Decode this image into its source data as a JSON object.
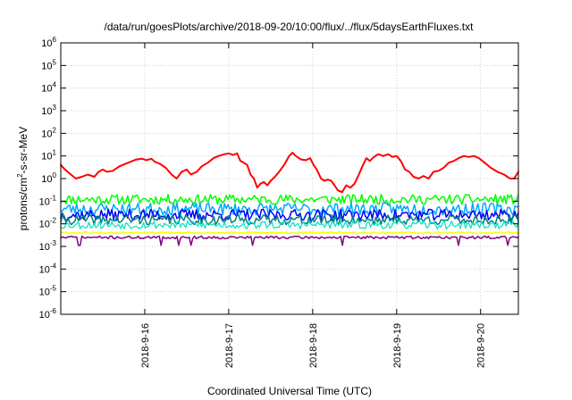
{
  "chart_data": {
    "type": "line",
    "title": "/data/run/goesPlots/archive/2018-09-20/10:00/flux/../flux/5daysEarthFluxes.txt",
    "xlabel": "Coordinated Universal Time (UTC)",
    "ylabel": "protons/cm2-s-sr-MeV",
    "ylabel_parts": {
      "pre": "protons/cm",
      "sup": "2",
      "post": "-s-sr-MeV"
    },
    "yscale": "log",
    "ylim": [
      1e-06,
      1000000.0
    ],
    "xlim": [
      0,
      5.45
    ],
    "grid": true,
    "x_tick_labels": [
      {
        "x": 1,
        "label": "2018-9-16"
      },
      {
        "x": 2,
        "label": "2018-9-17"
      },
      {
        "x": 3,
        "label": "2018-9-18"
      },
      {
        "x": 4,
        "label": "2018-9-19"
      },
      {
        "x": 5,
        "label": "2018-9-20"
      }
    ],
    "y_tick_labels": [
      {
        "exp": -6,
        "base": "10",
        "sup": "-6"
      },
      {
        "exp": -5,
        "base": "10",
        "sup": "-5"
      },
      {
        "exp": -4,
        "base": "10",
        "sup": "-4"
      },
      {
        "exp": -3,
        "base": "10",
        "sup": "-3"
      },
      {
        "exp": -2,
        "base": "10",
        "sup": "-2"
      },
      {
        "exp": -1,
        "base": "10",
        "sup": "-1"
      },
      {
        "exp": 0,
        "base": "10",
        "sup": "0"
      },
      {
        "exp": 1,
        "base": "10",
        "sup": "1"
      },
      {
        "exp": 2,
        "base": "10",
        "sup": "2"
      },
      {
        "exp": 3,
        "base": "10",
        "sup": "3"
      },
      {
        "exp": 4,
        "base": "10",
        "sup": "4"
      },
      {
        "exp": 5,
        "base": "10",
        "sup": "5"
      },
      {
        "exp": 6,
        "base": "10",
        "sup": "6"
      }
    ],
    "x_note": "x values are days relative to the 2018-9-16 00:00 UTC tick minus one (x=1 is 2018-9-16)",
    "series": [
      {
        "color": "#ff0000",
        "width": 2,
        "points": [
          [
            0.0,
            4.0
          ],
          [
            0.05,
            2.5
          ],
          [
            0.12,
            1.5
          ],
          [
            0.18,
            1.0
          ],
          [
            0.25,
            1.2
          ],
          [
            0.32,
            1.5
          ],
          [
            0.4,
            1.2
          ],
          [
            0.45,
            2.0
          ],
          [
            0.5,
            2.5
          ],
          [
            0.55,
            2.0
          ],
          [
            0.62,
            2.2
          ],
          [
            0.7,
            3.5
          ],
          [
            0.8,
            5.0
          ],
          [
            0.9,
            7.0
          ],
          [
            0.97,
            7.5
          ],
          [
            1.02,
            6.5
          ],
          [
            1.08,
            7.5
          ],
          [
            1.12,
            5.5
          ],
          [
            1.18,
            4.5
          ],
          [
            1.25,
            3.0
          ],
          [
            1.32,
            1.5
          ],
          [
            1.38,
            1.0
          ],
          [
            1.44,
            2.0
          ],
          [
            1.5,
            2.5
          ],
          [
            1.55,
            1.5
          ],
          [
            1.62,
            2.0
          ],
          [
            1.68,
            3.5
          ],
          [
            1.75,
            5.0
          ],
          [
            1.82,
            8.0
          ],
          [
            1.88,
            10.0
          ],
          [
            1.95,
            12.0
          ],
          [
            2.0,
            13.0
          ],
          [
            2.05,
            11.0
          ],
          [
            2.1,
            13.0
          ],
          [
            2.14,
            6.0
          ],
          [
            2.18,
            5.0
          ],
          [
            2.22,
            4.0
          ],
          [
            2.26,
            1.5
          ],
          [
            2.3,
            1.0
          ],
          [
            2.34,
            0.4
          ],
          [
            2.38,
            0.6
          ],
          [
            2.42,
            0.7
          ],
          [
            2.46,
            0.5
          ],
          [
            2.5,
            0.8
          ],
          [
            2.55,
            1.2
          ],
          [
            2.6,
            2.0
          ],
          [
            2.66,
            4.0
          ],
          [
            2.72,
            10.0
          ],
          [
            2.76,
            14.0
          ],
          [
            2.8,
            10.0
          ],
          [
            2.86,
            7.0
          ],
          [
            2.92,
            6.5
          ],
          [
            2.97,
            8.0
          ],
          [
            3.01,
            4.0
          ],
          [
            3.05,
            2.5
          ],
          [
            3.1,
            1.0
          ],
          [
            3.14,
            0.8
          ],
          [
            3.18,
            0.9
          ],
          [
            3.22,
            0.8
          ],
          [
            3.26,
            0.5
          ],
          [
            3.3,
            0.3
          ],
          [
            3.35,
            0.25
          ],
          [
            3.4,
            0.5
          ],
          [
            3.45,
            0.4
          ],
          [
            3.5,
            0.6
          ],
          [
            3.55,
            1.5
          ],
          [
            3.6,
            4.0
          ],
          [
            3.64,
            8.0
          ],
          [
            3.68,
            6.0
          ],
          [
            3.73,
            9.0
          ],
          [
            3.78,
            12.0
          ],
          [
            3.84,
            10.0
          ],
          [
            3.9,
            12.0
          ],
          [
            3.95,
            9.0
          ],
          [
            4.0,
            10.0
          ],
          [
            4.05,
            6.0
          ],
          [
            4.1,
            2.5
          ],
          [
            4.15,
            2.0
          ],
          [
            4.2,
            1.2
          ],
          [
            4.26,
            1.0
          ],
          [
            4.32,
            1.3
          ],
          [
            4.38,
            1.0
          ],
          [
            4.44,
            2.0
          ],
          [
            4.5,
            2.2
          ],
          [
            4.56,
            3.0
          ],
          [
            4.62,
            5.0
          ],
          [
            4.68,
            6.0
          ],
          [
            4.74,
            8.0
          ],
          [
            4.8,
            10.0
          ],
          [
            4.86,
            9.0
          ],
          [
            4.92,
            10.0
          ],
          [
            4.98,
            8.0
          ],
          [
            5.05,
            5.0
          ],
          [
            5.12,
            3.0
          ],
          [
            5.2,
            2.0
          ],
          [
            5.28,
            1.5
          ],
          [
            5.35,
            1.0
          ],
          [
            5.4,
            1.0
          ],
          [
            5.45,
            2.0
          ]
        ]
      },
      {
        "color": "#00ff00",
        "width": 1.5,
        "base": 0.12,
        "jitter": 0.22,
        "seed": 11
      },
      {
        "color": "#00a8ff",
        "width": 1.5,
        "base": 0.045,
        "jitter": 0.28,
        "seed": 23
      },
      {
        "color": "#0000ff",
        "width": 1.5,
        "base": 0.025,
        "jitter": 0.25,
        "seed": 37
      },
      {
        "color": "#008080",
        "width": 1.5,
        "base": 0.015,
        "jitter": 0.22,
        "seed": 41
      },
      {
        "color": "#00e0c0",
        "width": 1.2,
        "base": 0.009,
        "jitter": 0.18,
        "seed": 53
      },
      {
        "color": "#ffff00",
        "width": 1.5,
        "base": 0.004,
        "jitter": 0.04,
        "seed": 61
      },
      {
        "color": "#800080",
        "width": 1.5,
        "base": 0.0025,
        "jitter": 0.06,
        "seed": 71,
        "dips": [
          0.22,
          1.2,
          1.4,
          1.55,
          2.28,
          3.36,
          4.74,
          5.33
        ]
      }
    ]
  }
}
